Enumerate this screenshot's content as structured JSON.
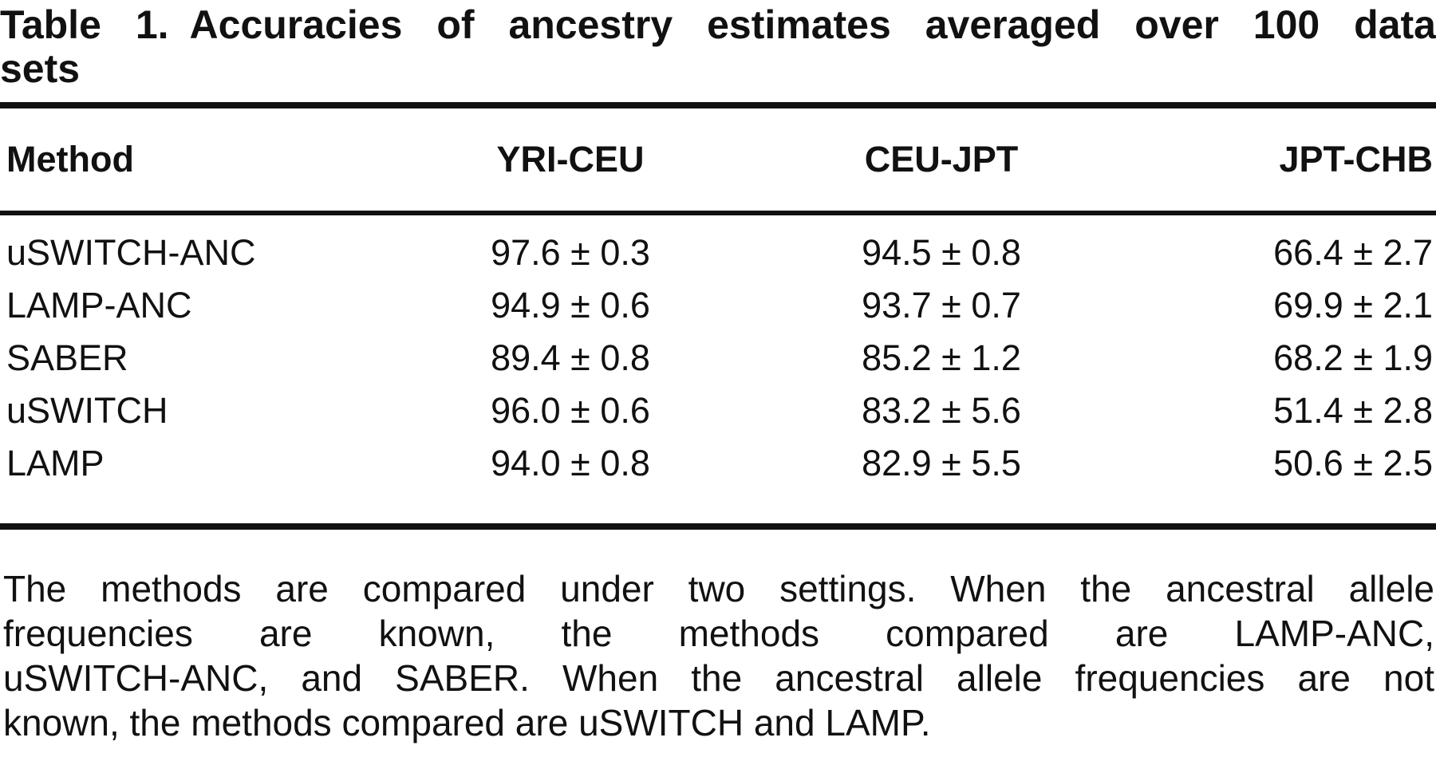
{
  "title": {
    "label": "Table 1.",
    "line1": "Accuracies of ancestry estimates averaged over 100 data",
    "line2": "sets"
  },
  "table": {
    "columns": [
      "Method",
      "YRI-CEU",
      "CEU-JPT",
      "JPT-CHB"
    ],
    "rows": [
      {
        "method": "uSWITCH-ANC",
        "cells": [
          "97.6 ± 0.3",
          "94.5 ± 0.8",
          "66.4 ± 2.7"
        ]
      },
      {
        "method": "LAMP-ANC",
        "cells": [
          "94.9 ± 0.6",
          "93.7 ± 0.7",
          "69.9 ± 2.1"
        ]
      },
      {
        "method": "SABER",
        "cells": [
          "89.4 ± 0.8",
          "85.2 ± 1.2",
          "68.2 ± 1.9"
        ]
      },
      {
        "method": "uSWITCH",
        "cells": [
          "96.0 ± 0.6",
          "83.2 ± 5.6",
          "51.4 ± 2.8"
        ]
      },
      {
        "method": "LAMP",
        "cells": [
          "94.0 ± 0.8",
          "82.9 ± 5.5",
          "50.6 ± 2.5"
        ]
      }
    ]
  },
  "footnote": {
    "lines": [
      "The methods are compared under two settings. When the ancestral allele",
      "frequencies are known, the methods compared are LAMP-ANC,",
      "uSWITCH-ANC, and SABER. When the ancestral allele frequencies are not",
      "known, the methods compared are uSWITCH and LAMP."
    ]
  },
  "colors": {
    "text": "#111111",
    "background": "#ffffff",
    "rule": "#111111"
  }
}
